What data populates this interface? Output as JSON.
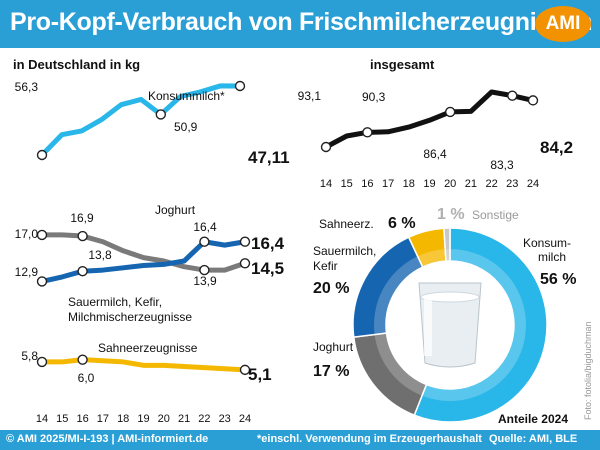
{
  "header": {
    "title": "Pro-Kopf-Verbrauch von Frischmilcherzeugnissen",
    "logo": "AMI"
  },
  "footer": {
    "left": "© AMI 2025/MI-I-193 | AMI-informiert.de",
    "middle": "*einschl. Verwendung im Erzeugerhaushalt",
    "right": "Quelle: AMI, BLE"
  },
  "photo_credit": "Foto: fotolia/bigduchman",
  "chart_data": [
    {
      "type": "line",
      "title": "in Deutschland in kg",
      "x": [
        "14",
        "15",
        "16",
        "17",
        "18",
        "19",
        "20",
        "21",
        "22",
        "23",
        "24"
      ],
      "series": [
        {
          "name": "Konsummilch*",
          "color": "#29b6e8",
          "values": [
            56.3,
            53.6,
            53.1,
            51.6,
            49.6,
            48.9,
            50.9,
            48.5,
            47.9,
            47.1,
            47.11
          ],
          "labels": [
            {
              "i": 0,
              "text": "56,3"
            },
            {
              "i": 6,
              "text": "50,9"
            },
            {
              "i": 10,
              "text": "47,11"
            }
          ]
        }
      ]
    },
    {
      "type": "line",
      "title": "insgesamt",
      "x": [
        "14",
        "15",
        "16",
        "17",
        "18",
        "19",
        "20",
        "21",
        "22",
        "23",
        "24"
      ],
      "series": [
        {
          "name": "",
          "color": "#111111",
          "values": [
            93.1,
            91.0,
            90.3,
            90.2,
            89.3,
            88.0,
            86.4,
            86.3,
            82.6,
            83.3,
            84.2
          ],
          "labels": [
            {
              "i": 0,
              "text": "93,1"
            },
            {
              "i": 2,
              "text": "90,3"
            },
            {
              "i": 6,
              "text": "86,4"
            },
            {
              "i": 9,
              "text": "83,3"
            },
            {
              "i": 10,
              "text": "84,2"
            }
          ]
        }
      ]
    },
    {
      "type": "line",
      "title": "",
      "x": [
        "14",
        "15",
        "16",
        "17",
        "18",
        "19",
        "20",
        "21",
        "22",
        "23",
        "24"
      ],
      "series": [
        {
          "name": "Joghurt",
          "color": "#1565b0",
          "values": [
            12.9,
            13.3,
            13.8,
            13.9,
            14.1,
            14.3,
            14.4,
            14.7,
            16.4,
            16.1,
            16.4
          ],
          "labels": [
            {
              "i": 0,
              "text": "12,9"
            },
            {
              "i": 2,
              "text": "13,8"
            },
            {
              "i": 8,
              "text": "16,4"
            },
            {
              "i": 10,
              "text": "16,4"
            }
          ]
        },
        {
          "name": "Sauermilch, Kefir, Milchmischerzeugnisse",
          "color": "#7a7a7a",
          "values": [
            17.0,
            17.0,
            16.9,
            16.4,
            15.6,
            15.0,
            14.7,
            14.2,
            13.9,
            13.9,
            14.5
          ],
          "labels": [
            {
              "i": 0,
              "text": "17,0"
            },
            {
              "i": 2,
              "text": "16,9"
            },
            {
              "i": 8,
              "text": "13,9"
            },
            {
              "i": 10,
              "text": "14,5"
            }
          ]
        },
        {
          "name": "Sahneerzeugnisse",
          "color": "#f5b800",
          "values": [
            5.8,
            5.8,
            6.0,
            5.9,
            5.8,
            5.5,
            5.5,
            5.4,
            5.3,
            5.2,
            5.1
          ],
          "labels": [
            {
              "i": 0,
              "text": "5,8"
            },
            {
              "i": 2,
              "text": "6,0"
            },
            {
              "i": 10,
              "text": "5,1"
            }
          ]
        }
      ]
    },
    {
      "type": "pie",
      "title": "Anteile 2024",
      "slices": [
        {
          "name": "Konsum-milch",
          "value": 56,
          "label": "56 %",
          "color": "#29b6e8"
        },
        {
          "name": "Joghurt",
          "value": 17,
          "label": "17 %",
          "color": "#6f6f6f"
        },
        {
          "name": "Sauermilch, Kefir, ..",
          "value": 20,
          "label": "20 %",
          "color": "#1565b0"
        },
        {
          "name": "Sahneerz.",
          "value": 6,
          "label": "6 %",
          "color": "#f5b800"
        },
        {
          "name": "Sonstige",
          "value": 1,
          "label": "1 %",
          "color": "#c8c8c8"
        }
      ]
    }
  ]
}
